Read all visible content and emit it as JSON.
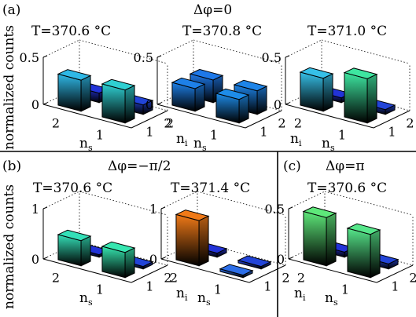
{
  "figure": {
    "ylabel": "normalized counts",
    "divider_color": "#000000",
    "panels": [
      {
        "letter": "(a)",
        "heading": "Δφ=0"
      },
      {
        "letter": "(b)",
        "heading": "Δφ=−π/2"
      },
      {
        "letter": "(c)",
        "heading": "Δφ=π"
      }
    ]
  },
  "chart_data": [
    {
      "type": "bar3d",
      "panel": "(a)",
      "title": "T=370.6 °C",
      "xlabel": "n_s",
      "ylabel": "n_i",
      "zlabel": "normalized counts",
      "x_ticks": [
        "2",
        "1"
      ],
      "y_ticks": [
        "1",
        "2"
      ],
      "z_ticks": [
        "0",
        "0.5"
      ],
      "zlim": [
        0,
        0.5
      ],
      "values": [
        [
          0.33,
          0.1
        ],
        [
          0.35,
          0.1
        ]
      ],
      "colors": [
        [
          "#2fb8e6",
          "#2233d8"
        ],
        [
          "#2fd0d2",
          "#2244d8"
        ]
      ]
    },
    {
      "type": "bar3d",
      "panel": "(a)",
      "title": "T=370.8 °C",
      "xlabel": "n_s",
      "ylabel": "n_i",
      "zlabel": "normalized counts",
      "x_ticks": [
        "2",
        "1"
      ],
      "y_ticks": [
        "1",
        "2"
      ],
      "z_ticks": [
        "0",
        "0.5"
      ],
      "zlim": [
        0,
        0.5
      ],
      "values": [
        [
          0.24,
          0.24
        ],
        [
          0.25,
          0.25
        ]
      ],
      "colors": [
        [
          "#1e80e8",
          "#1e78e8"
        ],
        [
          "#1e8ce8",
          "#1e84e8"
        ]
      ]
    },
    {
      "type": "bar3d",
      "panel": "(a)",
      "title": "T=371.0 °C",
      "xlabel": "n_s",
      "ylabel": "n_i",
      "zlabel": "normalized counts",
      "x_ticks": [
        "2",
        "1"
      ],
      "y_ticks": [
        "1",
        "2"
      ],
      "z_ticks": [
        "0",
        "0.5"
      ],
      "zlim": [
        0,
        0.5
      ],
      "values": [
        [
          0.35,
          0.05
        ],
        [
          0.47,
          0.05
        ]
      ],
      "colors": [
        [
          "#36c0e8",
          "#2233d8"
        ],
        [
          "#3ee6a0",
          "#2244d8"
        ]
      ]
    },
    {
      "type": "bar3d",
      "panel": "(b)",
      "title": "T=370.6 °C",
      "xlabel": "n_s",
      "ylabel": "n_i",
      "zlabel": "normalized counts",
      "x_ticks": [
        "2",
        "1"
      ],
      "y_ticks": [
        "1",
        "2"
      ],
      "z_ticks": [
        "0",
        "1"
      ],
      "zlim": [
        0,
        1
      ],
      "values": [
        [
          0.5,
          0.05
        ],
        [
          0.5,
          0.05
        ]
      ],
      "colors": [
        [
          "#34e0b8",
          "#2233d8"
        ],
        [
          "#36e6b0",
          "#2244d8"
        ]
      ]
    },
    {
      "type": "bar3d",
      "panel": "(b)",
      "title": "T=371.4 °C",
      "xlabel": "n_s",
      "ylabel": "n_i",
      "zlabel": "normalized counts",
      "x_ticks": [
        "2",
        "1"
      ],
      "y_ticks": [
        "1",
        "2"
      ],
      "z_ticks": [
        "0",
        "1"
      ],
      "zlim": [
        0,
        1
      ],
      "values": [
        [
          0.9,
          0.08
        ],
        [
          0.05,
          0.05
        ]
      ],
      "colors": [
        [
          "#f07a18",
          "#2233d8"
        ],
        [
          "#2c6ee8",
          "#2244d8"
        ]
      ]
    },
    {
      "type": "bar3d",
      "panel": "(c)",
      "title": "T=370.6 °C",
      "xlabel": "n_s",
      "ylabel": "n_i",
      "zlabel": "normalized counts",
      "x_ticks": [
        "2",
        "1"
      ],
      "y_ticks": [
        "1",
        "2"
      ],
      "z_ticks": [
        "0",
        "0.5"
      ],
      "zlim": [
        0,
        0.5
      ],
      "values": [
        [
          0.48,
          0.05
        ],
        [
          0.43,
          0.05
        ]
      ],
      "colors": [
        [
          "#5ee87a",
          "#2233d8"
        ],
        [
          "#56e68a",
          "#2244d8"
        ]
      ]
    }
  ]
}
